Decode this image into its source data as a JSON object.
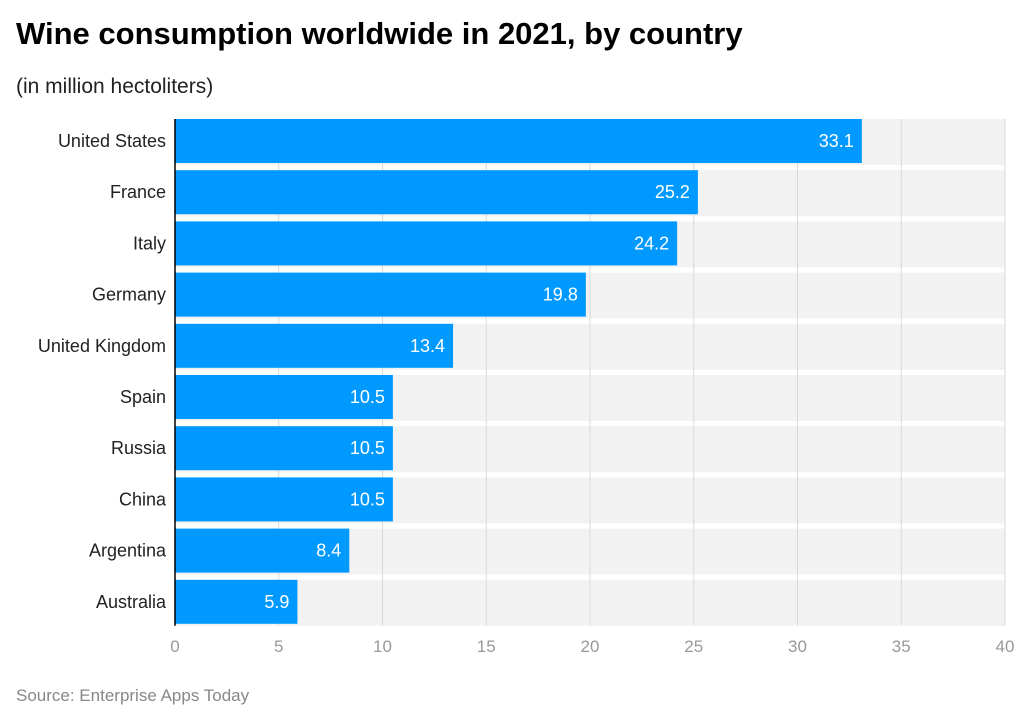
{
  "chart_data": {
    "type": "bar",
    "orientation": "horizontal",
    "title": "Wine consumption worldwide in 2021, by country",
    "subtitle": "(in million hectoliters)",
    "source": "Source: Enterprise Apps Today",
    "categories": [
      "United States",
      "France",
      "Italy",
      "Germany",
      "United Kingdom",
      "Spain",
      "Russia",
      "China",
      "Argentina",
      "Australia"
    ],
    "values": [
      33.1,
      25.2,
      24.2,
      19.8,
      13.4,
      10.5,
      10.5,
      10.5,
      8.4,
      5.9
    ],
    "xlim": [
      0,
      40
    ],
    "xticks": [
      0,
      5,
      10,
      15,
      20,
      25,
      30,
      35,
      40
    ],
    "grid": true,
    "colors": {
      "bar": "#0099ff",
      "band": "#f2f2f2",
      "grid": "#d9d9d9",
      "value_label": "#ffffff",
      "tick": "#999999"
    }
  }
}
